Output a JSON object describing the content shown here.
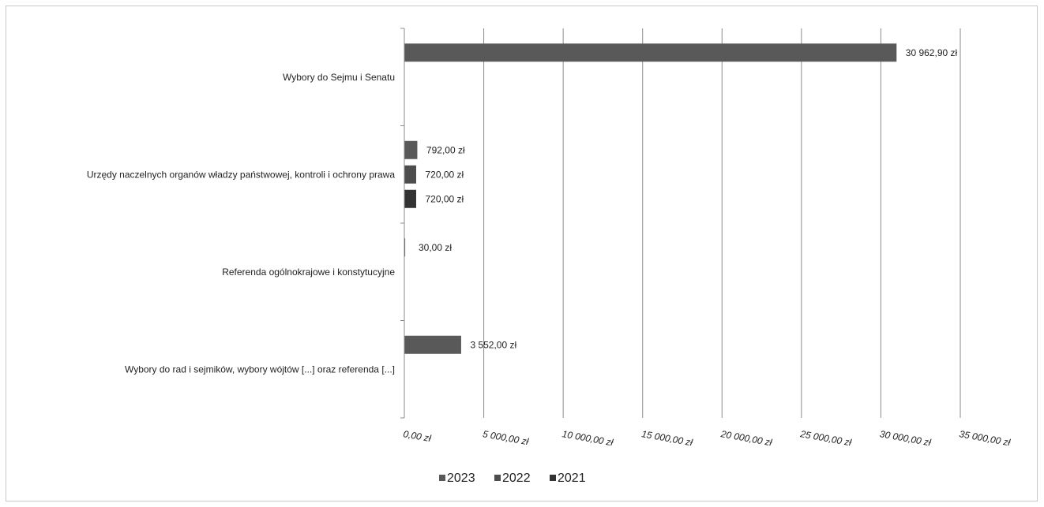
{
  "chart_data": {
    "type": "bar",
    "orientation": "horizontal",
    "categories": [
      "Wybory do Sejmu i Senatu",
      "Urzędy naczelnych organów władzy państwowej, kontroli i ochrony prawa",
      "Referenda ogólnokrajowe i konstytucyjne",
      "Wybory do rad i sejmików,  wybory wójtów [...] oraz referenda [...]"
    ],
    "series": [
      {
        "name": "2023",
        "color": "#595959",
        "values": [
          30962.9,
          792.0,
          30.0,
          3552.0
        ],
        "labels": [
          "30 962,90 zł",
          "792,00 zł",
          "30,00 zł",
          "3 552,00 zł"
        ]
      },
      {
        "name": "2022",
        "color": "#4d4d4d",
        "values": [
          null,
          720.0,
          null,
          null
        ],
        "labels": [
          "",
          "720,00 zł",
          "",
          ""
        ]
      },
      {
        "name": "2021",
        "color": "#333333",
        "values": [
          null,
          720.0,
          null,
          null
        ],
        "labels": [
          "",
          "720,00 zł",
          "",
          ""
        ]
      }
    ],
    "xlim": [
      0,
      35000
    ],
    "x_ticks": [
      0,
      5000,
      10000,
      15000,
      20000,
      25000,
      30000,
      35000
    ],
    "x_tick_labels": [
      "0,00 zł",
      "5 000,00 zł",
      "10 000,00 zł",
      "15 000,00 zł",
      "20 000,00 zł",
      "25 000,00 zł",
      "30 000,00 zł",
      "35 000,00 zł"
    ],
    "grid": true,
    "legend_position": "bottom",
    "title": "",
    "xlabel": "",
    "ylabel": ""
  }
}
